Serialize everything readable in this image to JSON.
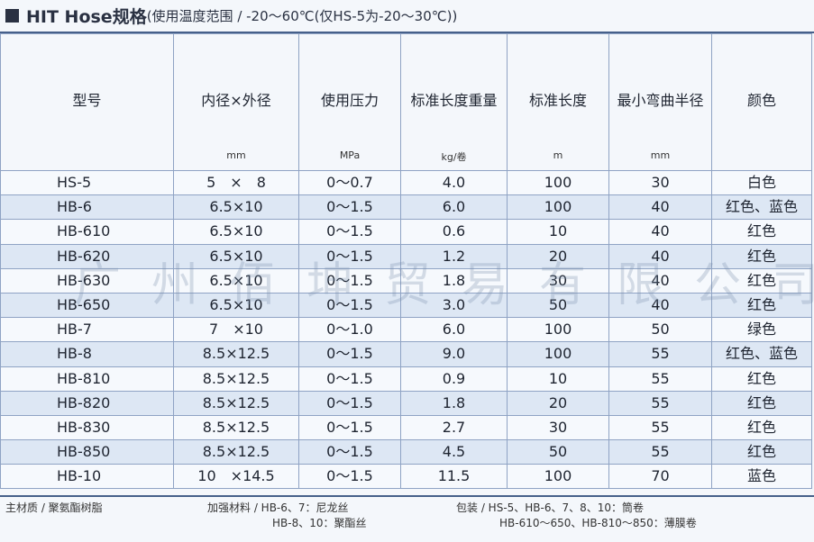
{
  "title": {
    "main": "HIT Hose规格",
    "range": "(使用温度范围 / -20～60℃(仅HS-5为-20～30℃))"
  },
  "columns": [
    {
      "label": "型号",
      "unit": ""
    },
    {
      "label": "内径×外径",
      "unit": "mm"
    },
    {
      "label": "使用压力",
      "unit": "MPa"
    },
    {
      "label": "标准长度重量",
      "unit": "kg/卷"
    },
    {
      "label": "标准长度",
      "unit": "m"
    },
    {
      "label": "最小弯曲半径",
      "unit": "mm"
    },
    {
      "label": "颜色",
      "unit": ""
    }
  ],
  "rows": [
    [
      "HS-5",
      "5　×　8",
      "0～0.7",
      "4.0",
      "100",
      "30",
      "白色"
    ],
    [
      "HB-6",
      "6.5×10",
      "0～1.5",
      "6.0",
      "100",
      "40",
      "红色、蓝色"
    ],
    [
      "HB-610",
      "6.5×10",
      "0～1.5",
      "0.6",
      "10",
      "40",
      "红色"
    ],
    [
      "HB-620",
      "6.5×10",
      "0～1.5",
      "1.2",
      "20",
      "40",
      "红色"
    ],
    [
      "HB-630",
      "6.5×10",
      "0～1.5",
      "1.8",
      "30",
      "40",
      "红色"
    ],
    [
      "HB-650",
      "6.5×10",
      "0～1.5",
      "3.0",
      "50",
      "40",
      "红色"
    ],
    [
      "HB-7",
      "7　×10",
      "0～1.0",
      "6.0",
      "100",
      "50",
      "绿色"
    ],
    [
      "HB-8",
      "8.5×12.5",
      "0～1.5",
      "9.0",
      "100",
      "55",
      "红色、蓝色"
    ],
    [
      "HB-810",
      "8.5×12.5",
      "0～1.5",
      "0.9",
      "10",
      "55",
      "红色"
    ],
    [
      "HB-820",
      "8.5×12.5",
      "0～1.5",
      "1.8",
      "20",
      "55",
      "红色"
    ],
    [
      "HB-830",
      "8.5×12.5",
      "0～1.5",
      "2.7",
      "30",
      "55",
      "红色"
    ],
    [
      "HB-850",
      "8.5×12.5",
      "0～1.5",
      "4.5",
      "50",
      "55",
      "红色"
    ],
    [
      "HB-10",
      "10　×14.5",
      "0～1.5",
      "11.5",
      "100",
      "70",
      "蓝色"
    ]
  ],
  "footer": {
    "material": "主材质 / 聚氨酯树脂",
    "reinforce_line1": "加强材料 / HB-6、7：尼龙丝",
    "reinforce_line2": "HB-8、10：聚酯丝",
    "package_line1": "包装 / HS-5、HB-6、7、8、10：筒卷",
    "package_line2": "HB-610～650、HB-810～850：薄膜卷"
  },
  "watermark": "广州佰坤贸易有限公司"
}
